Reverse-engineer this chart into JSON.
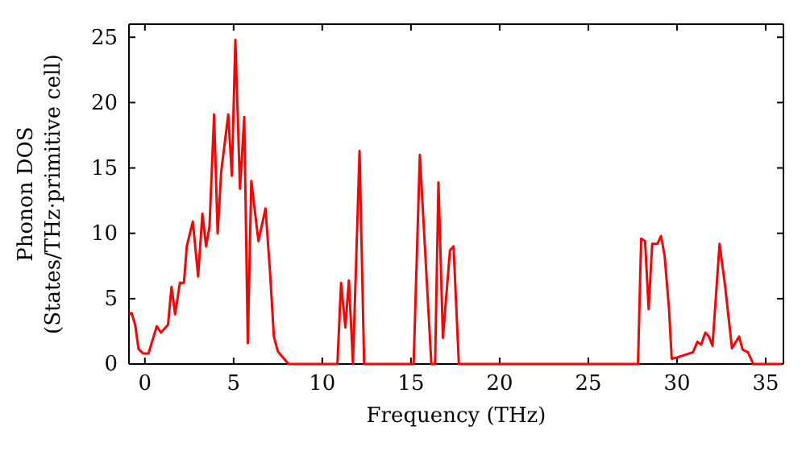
{
  "chart_data": {
    "type": "line",
    "xlabel": "Frequency (THz)",
    "ylabel": "Phonon DOS\n(States/THz·primitive cell)",
    "xlim": [
      -0.9,
      36
    ],
    "ylim": [
      0,
      26
    ],
    "xticks": [
      0,
      5,
      10,
      15,
      20,
      25,
      30,
      35
    ],
    "yticks": [
      0,
      5,
      10,
      15,
      20,
      25
    ],
    "grid": false,
    "marker": "none",
    "line_style": "solid",
    "series": [
      {
        "color": "#ff0000",
        "x": [
          -0.9,
          -0.75,
          -0.55,
          -0.36,
          -0.1,
          0.2,
          0.67,
          0.9,
          1.3,
          1.5,
          1.7,
          1.97,
          2.2,
          2.36,
          2.7,
          3.0,
          3.24,
          3.45,
          3.64,
          3.9,
          4.1,
          4.3,
          4.7,
          4.9,
          5.1,
          5.36,
          5.6,
          5.8,
          6.0,
          6.4,
          6.8,
          7.06,
          7.27,
          7.5,
          8.1,
          10.85,
          11.06,
          11.3,
          11.5,
          11.73,
          12.1,
          12.36,
          15.15,
          15.5,
          16.15,
          16.36,
          16.55,
          16.8,
          17.2,
          17.4,
          17.7,
          27.8,
          27.98,
          28.2,
          28.4,
          28.6,
          28.9,
          29.1,
          29.3,
          29.55,
          29.7,
          30.0,
          30.9,
          31.15,
          31.36,
          31.6,
          31.8,
          32.0,
          32.4,
          32.7,
          33.1,
          33.5,
          33.7,
          34.0,
          34.3,
          35.9
        ],
        "values": [
          3.8,
          3.9,
          3.0,
          1.15,
          0.8,
          0.8,
          2.9,
          2.4,
          3.0,
          5.9,
          3.8,
          6.2,
          6.2,
          9.0,
          10.9,
          6.7,
          11.5,
          9.0,
          10.5,
          19.1,
          10.0,
          14.7,
          19.1,
          14.4,
          24.8,
          13.4,
          18.9,
          1.6,
          14.0,
          9.4,
          11.9,
          6.9,
          2.1,
          0.95,
          0,
          0,
          6.2,
          2.8,
          6.4,
          0,
          16.3,
          0,
          0,
          16.0,
          0,
          0,
          13.9,
          2.0,
          8.7,
          9.0,
          0,
          0,
          9.6,
          9.4,
          4.2,
          9.2,
          9.2,
          9.8,
          8.3,
          4.2,
          0.4,
          0.5,
          0.9,
          1.7,
          1.5,
          2.4,
          2.1,
          1.4,
          9.2,
          6.1,
          1.2,
          2.1,
          1.1,
          0.9,
          0,
          0
        ]
      }
    ]
  }
}
